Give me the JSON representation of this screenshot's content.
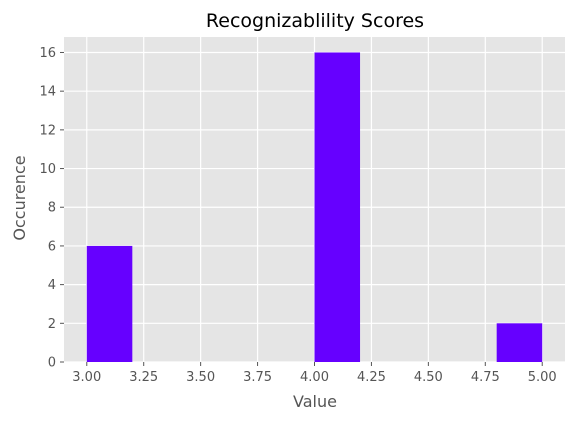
{
  "chart_data": {
    "type": "bar",
    "title": "Recognizablility Scores",
    "xlabel": "Value",
    "ylabel": "Occurence",
    "xlim": [
      2.9,
      5.1
    ],
    "ylim": [
      0,
      16.8
    ],
    "xticks": [
      3.0,
      3.25,
      3.5,
      3.75,
      4.0,
      4.25,
      4.5,
      4.75,
      5.0
    ],
    "xtick_labels": [
      "3.00",
      "3.25",
      "3.50",
      "3.75",
      "4.00",
      "4.25",
      "4.50",
      "4.75",
      "5.00"
    ],
    "yticks": [
      0,
      2,
      4,
      6,
      8,
      10,
      12,
      14,
      16
    ],
    "yticks_labels": [
      "0",
      "2",
      "4",
      "6",
      "8",
      "10",
      "12",
      "14",
      "16"
    ],
    "bin_edges": [
      3.0,
      3.2,
      3.4,
      3.6,
      3.8,
      4.0,
      4.2,
      4.4,
      4.6,
      4.8,
      5.0
    ],
    "counts": [
      6,
      0,
      0,
      0,
      0,
      16,
      0,
      0,
      0,
      2
    ],
    "grid": true,
    "colors": {
      "bar": "#6600ff",
      "plot_background": "#e5e5e5",
      "grid": "#ffffff"
    }
  }
}
